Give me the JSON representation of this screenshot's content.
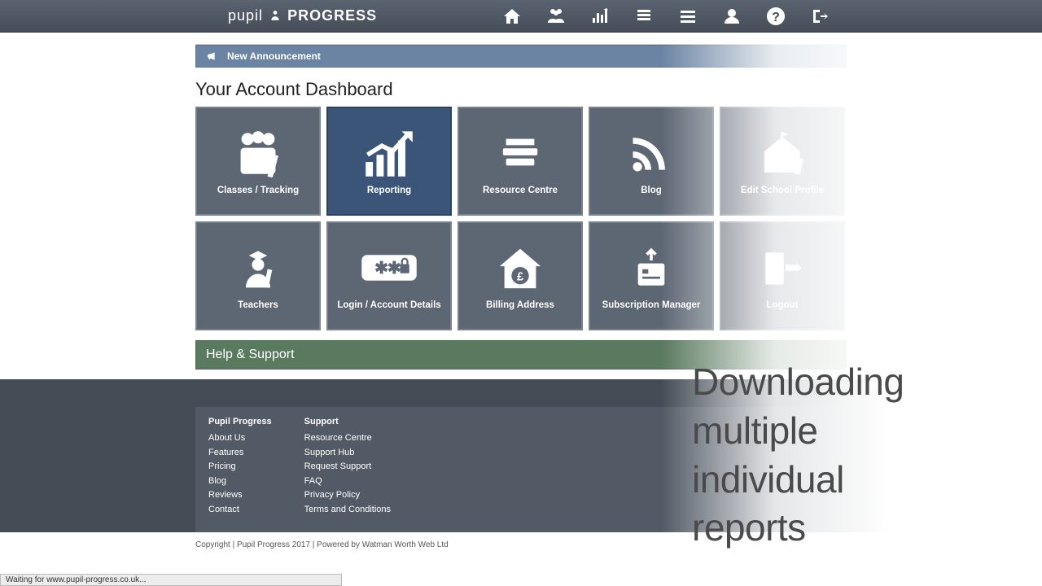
{
  "brand": {
    "part1": "pupil",
    "part2": "PROGRESS"
  },
  "announcement": {
    "label": "New Announcement"
  },
  "dashboard_title": "Your Account Dashboard",
  "tiles": [
    {
      "label": "Classes / Tracking",
      "icon": "group",
      "active": false
    },
    {
      "label": "Reporting",
      "icon": "chart",
      "active": true
    },
    {
      "label": "Resource Centre",
      "icon": "books",
      "active": false
    },
    {
      "label": "Blog",
      "icon": "rss",
      "active": false
    },
    {
      "label": "Edit School Profile",
      "icon": "school",
      "active": false
    },
    {
      "label": "Teachers",
      "icon": "teacher",
      "active": false
    },
    {
      "label": "Login / Account Details",
      "icon": "password",
      "active": false
    },
    {
      "label": "Billing Address",
      "icon": "billing",
      "active": false
    },
    {
      "label": "Subscription Manager",
      "icon": "subscription",
      "active": false
    },
    {
      "label": "Logout",
      "icon": "logout",
      "active": false
    }
  ],
  "help_support": "Help & Support",
  "footer": {
    "col1_title": "Pupil Progress",
    "col1_links": [
      "About Us",
      "Features",
      "Pricing",
      "Blog",
      "Reviews",
      "Contact"
    ],
    "col2_title": "Support",
    "col2_links": [
      "Resource Centre",
      "Support Hub",
      "Request Support",
      "FAQ",
      "Privacy Policy",
      "Terms and Conditions"
    ]
  },
  "copyright": "Copyright | Pupil Progress 2017 | Powered by Watman Worth Web Ltd",
  "overlay_text": "Downloading multiple individual reports",
  "statusbar": "Waiting for www.pupil-progress.co.uk...",
  "colors": {
    "topbar_grad_top": "#5a6370",
    "topbar_grad_bot": "#454d58",
    "announcement_bg": "#6b84a3",
    "tile_bg": "#5d6773",
    "tile_active_bg": "#3a5578",
    "help_bg": "#5a7a5f",
    "footer_bg": "#444c56"
  }
}
